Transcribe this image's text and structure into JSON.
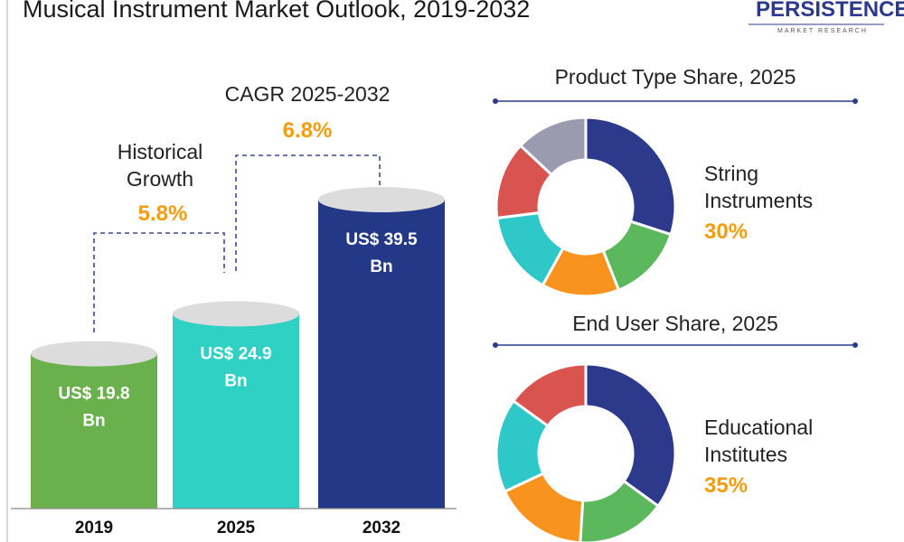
{
  "title": "Musical Instrument Market Outlook, 2019-2032",
  "logo": {
    "name": "PERSISTENCE",
    "tagline": "MARKET RESEARCH"
  },
  "historical": {
    "label1": "Historical",
    "label2": "Growth",
    "value": "5.8%"
  },
  "cagr": {
    "label": "CAGR 2025-2032",
    "value": "6.8%"
  },
  "colors": {
    "bar2019": "#6ab04c",
    "bar2025": "#2ed1c4",
    "bar2032": "#233987",
    "accent": "#f39c12",
    "top": "#dcdcdc"
  },
  "chart_data": [
    {
      "type": "bar",
      "categories": [
        "2019",
        "2025",
        "2032"
      ],
      "values": [
        19.8,
        24.9,
        39.5
      ],
      "labels": [
        [
          "US$ 19.8",
          "Bn"
        ],
        [
          "US$ 24.9",
          "Bn"
        ],
        [
          "US$ 39.5",
          "Bn"
        ]
      ],
      "colors": [
        "#6ab04c",
        "#2ed1c4",
        "#233987"
      ]
    },
    {
      "type": "pie",
      "title": "Product Type Share, 2025",
      "highlight": {
        "line1": "String",
        "line2": "Instruments",
        "value": "30%"
      },
      "slices": [
        {
          "value": 30,
          "color": "#2d3a8c"
        },
        {
          "value": 14,
          "color": "#5cb85c"
        },
        {
          "value": 14,
          "color": "#f7931e"
        },
        {
          "value": 15,
          "color": "#2ec8c8"
        },
        {
          "value": 14,
          "color": "#d9534f"
        },
        {
          "value": 13,
          "color": "#9b9bb0"
        }
      ]
    },
    {
      "type": "pie",
      "title": "End User Share, 2025",
      "highlight": {
        "line1": "Educational",
        "line2": "Institutes",
        "value": "35%"
      },
      "slices": [
        {
          "value": 35,
          "color": "#2d3a8c"
        },
        {
          "value": 16,
          "color": "#5cb85c"
        },
        {
          "value": 17,
          "color": "#f7931e"
        },
        {
          "value": 17,
          "color": "#2ec8c8"
        },
        {
          "value": 15,
          "color": "#d9534f"
        }
      ]
    }
  ]
}
